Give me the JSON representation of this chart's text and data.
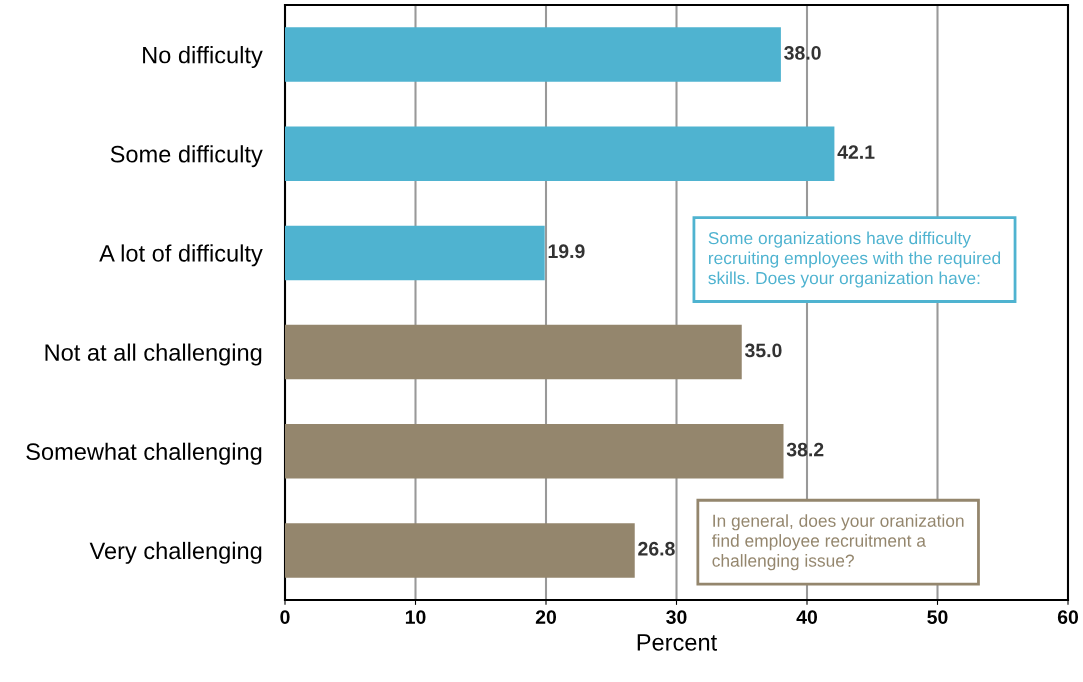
{
  "chart_data": {
    "type": "bar",
    "orientation": "horizontal",
    "xlabel": "Percent",
    "categories": [
      "No difficulty",
      "Some difficulty",
      "A lot of difficulty",
      "Not at all challenging",
      "Somewhat challenging",
      "Very challenging"
    ],
    "values": [
      38.0,
      42.1,
      19.9,
      35.0,
      38.2,
      26.8
    ],
    "value_labels": [
      "38.0",
      "42.1",
      "19.9",
      "35.0",
      "38.2",
      "26.8"
    ],
    "colors": [
      "#4fb3d0",
      "#4fb3d0",
      "#4fb3d0",
      "#94866d",
      "#94866d",
      "#94866d"
    ],
    "xlim": [
      0,
      60
    ],
    "xticks": [
      0,
      10,
      20,
      30,
      40,
      50,
      60
    ],
    "grid": "x",
    "annotations": [
      "Some organizations have difficulty recruiting employees with the required skills. Does your organization have:",
      "In general, does your oranization find employee recruitment a challenging issue?"
    ]
  }
}
